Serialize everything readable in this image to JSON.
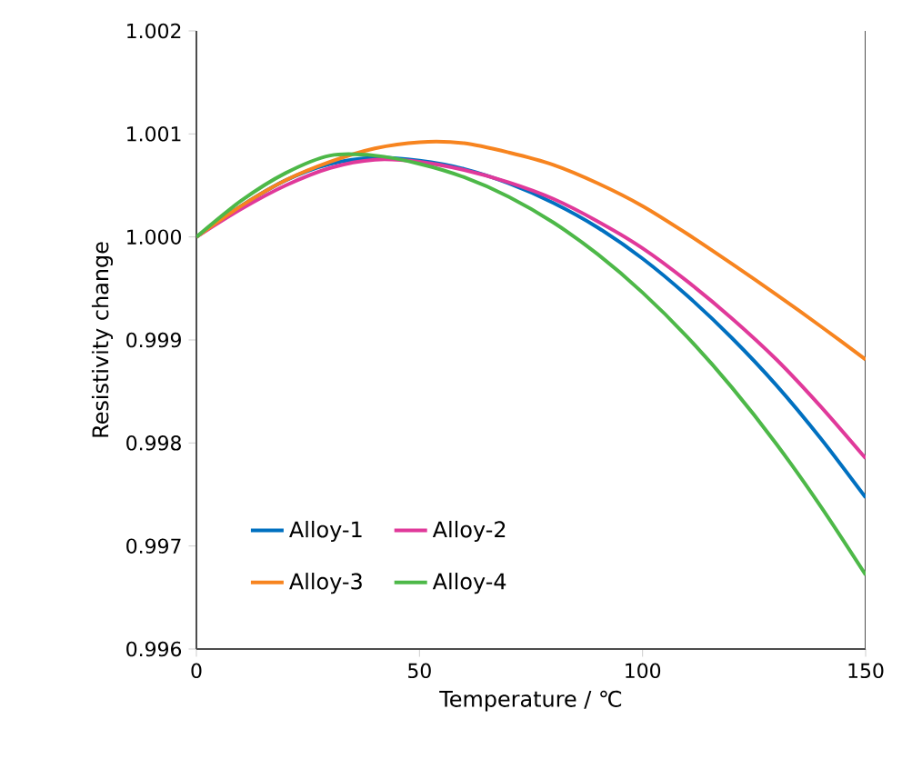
{
  "chart_data": {
    "type": "line",
    "xlabel": "Temperature / ℃",
    "ylabel": "Resistivity change",
    "x": [
      0,
      10,
      20,
      30,
      40,
      50,
      60,
      70,
      80,
      90,
      100,
      110,
      120,
      130,
      140,
      150
    ],
    "series": [
      {
        "name": "Alloy-1",
        "color": "#0070c0",
        "values": [
          1.0,
          1.0003,
          1.00055,
          1.00071,
          1.00077,
          1.00074,
          1.00066,
          1.00052,
          1.00033,
          1.00009,
          0.99979,
          0.99943,
          0.99902,
          0.99856,
          0.99804,
          0.99747
        ]
      },
      {
        "name": "Alloy-2",
        "color": "#e0399a",
        "values": [
          1.0,
          1.00027,
          1.0005,
          1.00067,
          1.00075,
          1.00073,
          1.00065,
          1.00053,
          1.00037,
          1.00015,
          0.99989,
          0.99957,
          0.99921,
          0.99881,
          0.99835,
          0.99785
        ]
      },
      {
        "name": "Alloy-3",
        "color": "#f7841f",
        "values": [
          1.0,
          1.0003,
          1.00055,
          1.00073,
          1.00086,
          1.00092,
          1.00091,
          1.00082,
          1.0007,
          1.00052,
          1.0003,
          1.00003,
          0.99974,
          0.99944,
          0.99913,
          0.99881
        ]
      },
      {
        "name": "Alloy-4",
        "color": "#4db848",
        "values": [
          1.0,
          1.00035,
          1.00062,
          1.00079,
          1.00079,
          1.00071,
          1.00058,
          1.00039,
          1.00014,
          0.99983,
          0.99946,
          0.99903,
          0.99854,
          0.99799,
          0.99738,
          0.99672
        ]
      }
    ],
    "xlim": [
      0,
      150
    ],
    "xticks": [
      0,
      50,
      100,
      150
    ],
    "ylim": [
      0.996,
      1.002
    ],
    "yticks": [
      {
        "value": 0.996,
        "label": "0.996"
      },
      {
        "value": 0.997,
        "label": "0.997"
      },
      {
        "value": 0.998,
        "label": "0.998"
      },
      {
        "value": 0.999,
        "label": "0.999"
      },
      {
        "value": 1.0,
        "label": "1.000"
      },
      {
        "value": 1.001,
        "label": "1.001"
      },
      {
        "value": 1.002,
        "label": "1.002"
      }
    ],
    "legend": "bottom left",
    "grid": false,
    "marker": "none",
    "line_style": "solid"
  }
}
